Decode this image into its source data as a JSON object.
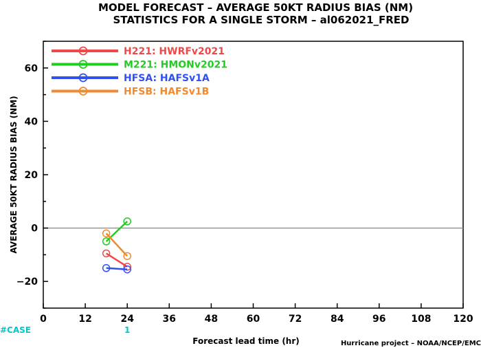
{
  "chart_data": {
    "type": "line",
    "title": "MODEL FORECAST – AVERAGE 50KT RADIUS BIAS (NM)",
    "subtitle": "STATISTICS FOR A SINGLE STORM – al062021_FRED",
    "xlabel": "Forecast lead time (hr)",
    "ylabel": "AVERAGE 50KT RADIUS BIAS (NM)",
    "xlim": [
      0,
      120
    ],
    "ylim": [
      -30,
      70
    ],
    "xticks": [
      "0",
      "12",
      "24",
      "36",
      "48",
      "60",
      "72",
      "84",
      "96",
      "108",
      "120"
    ],
    "yticks": [
      "−20",
      "0",
      "20",
      "40",
      "60"
    ],
    "zero_line": true,
    "legend_position": "top-left",
    "series": [
      {
        "name": "H221:  HWRFv2021",
        "color": "#f04848",
        "x": [
          18,
          24
        ],
        "y": [
          -9.5,
          -14.5
        ]
      },
      {
        "name": "M221:  HMONv2021",
        "color": "#22cc22",
        "x": [
          18,
          24
        ],
        "y": [
          -5,
          2.5
        ]
      },
      {
        "name": "HFSA:  HAFSv1A",
        "color": "#3050f0",
        "x": [
          18,
          24
        ],
        "y": [
          -15,
          -15.5
        ]
      },
      {
        "name": "HFSB:  HAFSv1B",
        "color": "#f08a30",
        "x": [
          18,
          24
        ],
        "y": [
          -2,
          -10.5
        ]
      }
    ],
    "cases_label": "#CASE",
    "cases": [
      {
        "x": 24,
        "count": "1"
      }
    ],
    "credit": "Hurricane project – NOAA/NCEP/EMC"
  }
}
